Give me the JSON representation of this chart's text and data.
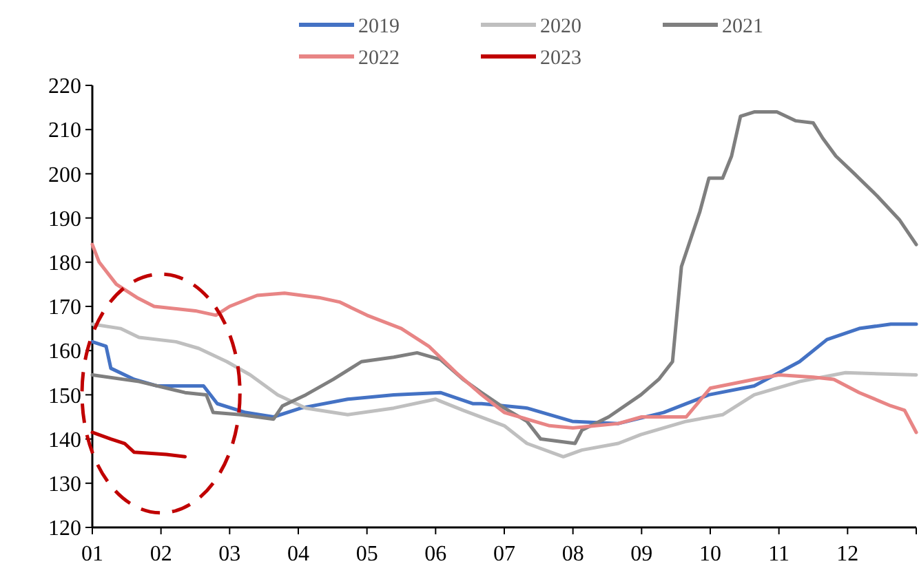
{
  "chart_data": {
    "type": "line",
    "legend": "top",
    "xlim": [
      1,
      13
    ],
    "ylim": [
      120,
      220
    ],
    "xticks": [
      {
        "value": 1,
        "label": "01"
      },
      {
        "value": 2,
        "label": "02"
      },
      {
        "value": 3,
        "label": "03"
      },
      {
        "value": 4,
        "label": "04"
      },
      {
        "value": 5,
        "label": "05"
      },
      {
        "value": 6,
        "label": "06"
      },
      {
        "value": 7,
        "label": "07"
      },
      {
        "value": 8,
        "label": "08"
      },
      {
        "value": 9,
        "label": "09"
      },
      {
        "value": 10,
        "label": "10"
      },
      {
        "value": 11,
        "label": "11"
      },
      {
        "value": 12,
        "label": "12"
      },
      {
        "value": 13,
        "label": null
      }
    ],
    "yticks": [
      120,
      130,
      140,
      150,
      160,
      170,
      180,
      190,
      200,
      210,
      220
    ],
    "series": [
      {
        "name": "2019",
        "color": "#4472c4",
        "x": [
          1,
          1.2,
          1.27,
          1.61,
          1.95,
          2.62,
          2.82,
          3.23,
          3.64,
          4.04,
          4.72,
          5.39,
          6.07,
          6.54,
          6.67,
          7.33,
          7.99,
          8.66,
          9.32,
          9.98,
          10.64,
          11.3,
          11.7,
          12.17,
          12.63,
          13
        ],
        "values": [
          162,
          161,
          156,
          153.5,
          152,
          152,
          148,
          146,
          145,
          147,
          149,
          150,
          150.5,
          148,
          148,
          147,
          144,
          143.5,
          146,
          150,
          152,
          157.5,
          162.5,
          165,
          166,
          166
        ]
      },
      {
        "name": "2020",
        "color": "#bfbfbf",
        "x": [
          1,
          1.41,
          1.68,
          2.22,
          2.55,
          2.96,
          3.3,
          3.7,
          4.11,
          4.72,
          5.39,
          6,
          6.4,
          7,
          7.33,
          7.86,
          8.13,
          8.66,
          8.99,
          9.65,
          10.18,
          10.64,
          11.3,
          11.97,
          13
        ],
        "values": [
          166,
          165,
          163,
          162,
          160.5,
          157.5,
          154.5,
          150,
          147,
          145.5,
          147,
          149,
          146.5,
          143,
          139,
          136,
          137.5,
          139,
          141,
          144,
          145.5,
          150,
          153,
          155,
          154.5
        ]
      },
      {
        "name": "2021",
        "color": "#7f7f7f",
        "x": [
          1,
          1.68,
          2.35,
          2.66,
          2.76,
          3.16,
          3.64,
          3.77,
          4.11,
          4.51,
          4.92,
          5.39,
          5.73,
          6.07,
          6.4,
          6.67,
          7,
          7.33,
          7.53,
          8.03,
          8.13,
          8.52,
          8.99,
          9.25,
          9.45,
          9.58,
          9.72,
          9.85,
          9.98,
          10.18,
          10.31,
          10.44,
          10.64,
          10.97,
          11.24,
          11.5,
          11.64,
          11.83,
          12.1,
          12.43,
          12.76,
          13
        ],
        "values": [
          154.5,
          153,
          150.5,
          150,
          146,
          145.5,
          144.5,
          147.5,
          150,
          153.5,
          157.5,
          158.5,
          159.5,
          158,
          153.5,
          150.5,
          147,
          144,
          140,
          139,
          142,
          145,
          150,
          153.5,
          157.5,
          179,
          185.5,
          191.5,
          199,
          199,
          204,
          213,
          214,
          214,
          212,
          211.5,
          208,
          204,
          200,
          195,
          189.5,
          184
        ]
      },
      {
        "name": "2022",
        "color": "#e88585",
        "x": [
          1,
          1.1,
          1.35,
          1.65,
          1.9,
          2.5,
          2.8,
          3,
          3.4,
          3.8,
          4.3,
          4.6,
          5,
          5.5,
          5.9,
          6.3,
          6.67,
          7,
          7.66,
          8,
          8.66,
          9,
          9.65,
          10,
          10.64,
          11,
          11.5,
          11.8,
          12.17,
          12.63,
          12.83,
          13
        ],
        "values": [
          184,
          180,
          175,
          172,
          170,
          169,
          168,
          170,
          172.5,
          173,
          172,
          171,
          168,
          165,
          161,
          155,
          150,
          146,
          143,
          142.5,
          143.5,
          145,
          145,
          151.5,
          153.5,
          154.5,
          154,
          153.5,
          150.5,
          147.5,
          146.5,
          141.5
        ]
      },
      {
        "name": "2023",
        "color": "#c00000",
        "x": [
          1,
          1.27,
          1.47,
          1.61,
          2.08,
          2.35
        ],
        "values": [
          141.5,
          140,
          139,
          137,
          136.5,
          136
        ]
      }
    ]
  }
}
